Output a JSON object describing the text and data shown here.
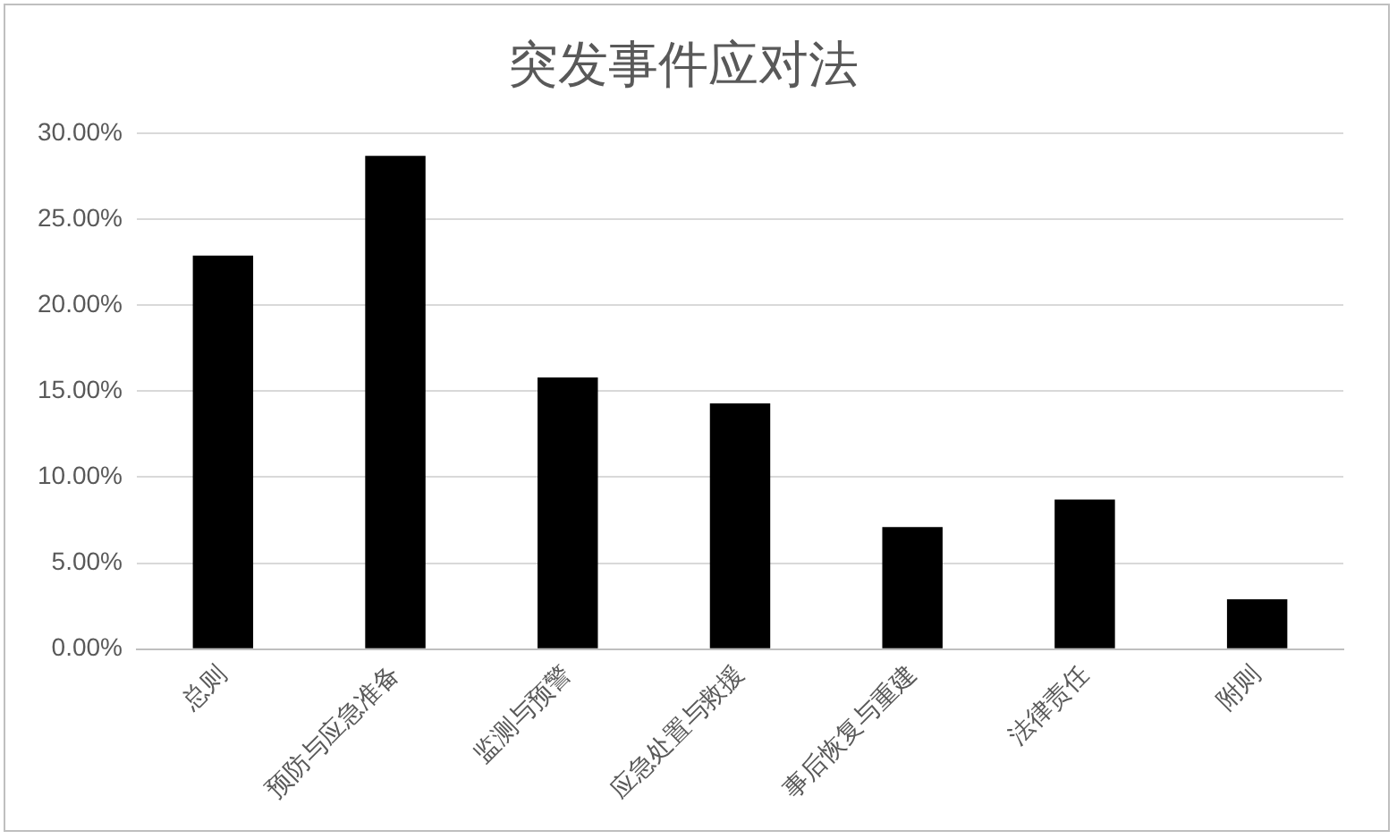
{
  "chart_data": {
    "type": "bar",
    "title": "突发事件应对法",
    "categories": [
      "总则",
      "预防与应急准备",
      "监测与预警",
      "应急处置与救援",
      "事后恢复与重建",
      "法律责任",
      "附则"
    ],
    "values": [
      22.9,
      28.7,
      15.8,
      14.3,
      7.1,
      8.7,
      2.9
    ],
    "color": "#000000",
    "ylim": [
      0,
      30
    ],
    "yticks": [
      {
        "value": 0,
        "label": "0.00%"
      },
      {
        "value": 5,
        "label": "5.00%"
      },
      {
        "value": 10,
        "label": "10.00%"
      },
      {
        "value": 15,
        "label": "15.00%"
      },
      {
        "value": 20,
        "label": "20.00%"
      },
      {
        "value": 25,
        "label": "25.00%"
      },
      {
        "value": 30,
        "label": "30.00%"
      }
    ],
    "grid": "y",
    "legend": false
  }
}
